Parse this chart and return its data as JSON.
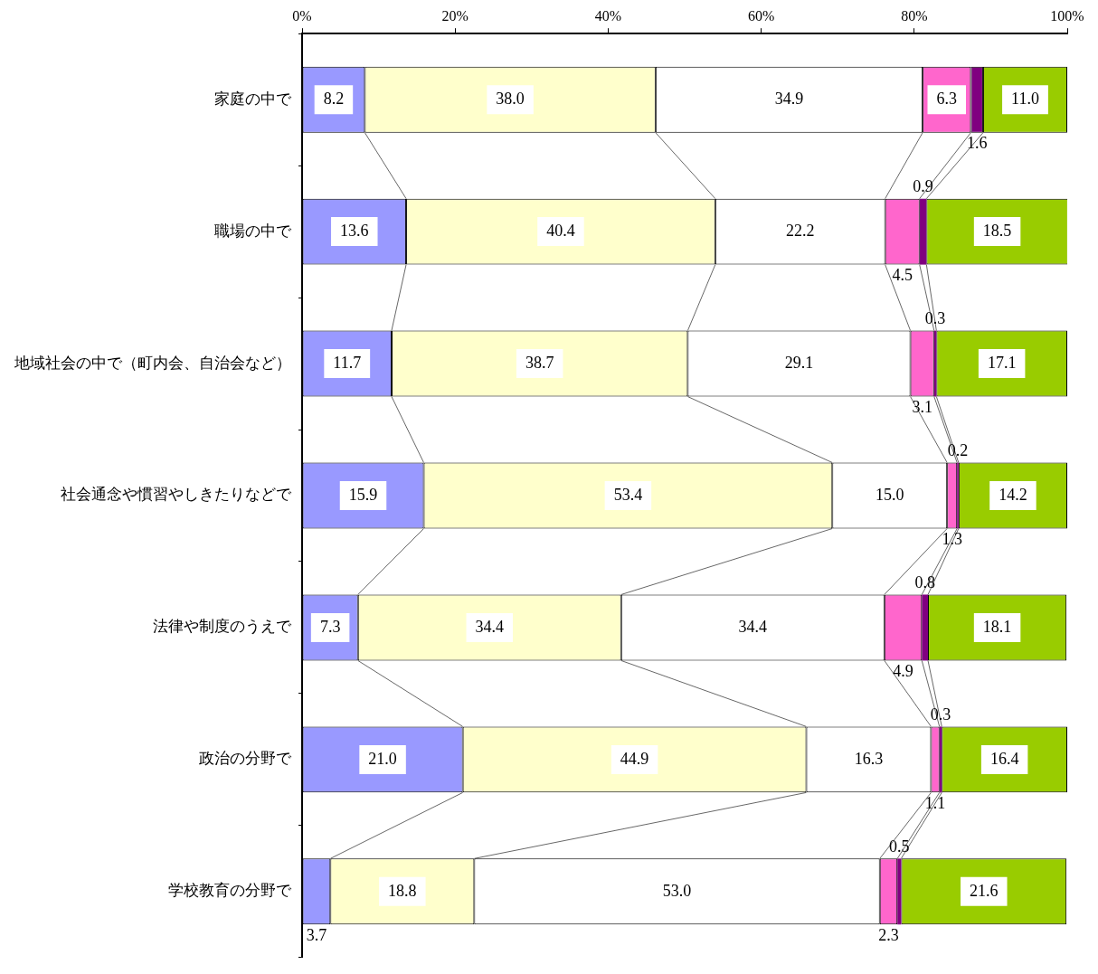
{
  "chart_data": {
    "type": "bar",
    "orientation": "horizontal",
    "stacked": true,
    "categories": [
      "家庭の中で",
      "職場の中で",
      "地域社会の中で（町内会、自治会など）",
      "社会通念や慣習やしきたりなどで",
      "法律や制度のうえで",
      "政治の分野で",
      "学校教育の分野で"
    ],
    "series": [
      {
        "color": "#9999ff",
        "values": [
          8.2,
          13.6,
          11.7,
          15.9,
          7.3,
          21.0,
          3.7
        ],
        "value_labels": [
          "8.2",
          "13.6",
          "11.7",
          "15.9",
          "7.3",
          "21.0",
          "3.7"
        ]
      },
      {
        "color": "#ffffcc",
        "values": [
          38.0,
          40.4,
          38.7,
          53.4,
          34.4,
          44.9,
          18.8
        ],
        "value_labels": [
          "38.0",
          "40.4",
          "38.7",
          "53.4",
          "34.4",
          "44.9",
          "18.8"
        ]
      },
      {
        "color": "#ffffff",
        "values": [
          34.9,
          22.2,
          29.1,
          15.0,
          34.4,
          16.3,
          53.0
        ],
        "value_labels": [
          "34.9",
          "22.2",
          "29.1",
          "15.0",
          "34.4",
          "16.3",
          "53.0"
        ]
      },
      {
        "color": "#ff66cc",
        "values": [
          6.3,
          4.5,
          3.1,
          1.3,
          4.9,
          1.1,
          2.3
        ],
        "value_labels": [
          "6.3",
          "4.5",
          "3.1",
          "1.3",
          "4.9",
          "1.1",
          "2.3"
        ]
      },
      {
        "color": "#800080",
        "values": [
          1.6,
          0.9,
          0.3,
          0.2,
          0.8,
          0.3,
          0.5
        ],
        "value_labels": [
          "1.6",
          "0.9",
          "0.3",
          "0.2",
          "0.8",
          "0.3",
          "0.5"
        ]
      },
      {
        "color": "#99cc00",
        "values": [
          11.0,
          18.5,
          17.1,
          14.2,
          18.1,
          16.4,
          21.6
        ],
        "value_labels": [
          "11.0",
          "18.5",
          "17.1",
          "14.2",
          "18.1",
          "16.4",
          "21.6"
        ]
      }
    ],
    "xlim": [
      0,
      100
    ],
    "xticks": [
      {
        "value": 0,
        "label": "0%"
      },
      {
        "value": 20,
        "label": "20%"
      },
      {
        "value": 40,
        "label": "40%"
      },
      {
        "value": 60,
        "label": "60%"
      },
      {
        "value": 80,
        "label": "80%"
      },
      {
        "value": 100,
        "label": "100%"
      }
    ],
    "grid": false,
    "legend": false
  }
}
